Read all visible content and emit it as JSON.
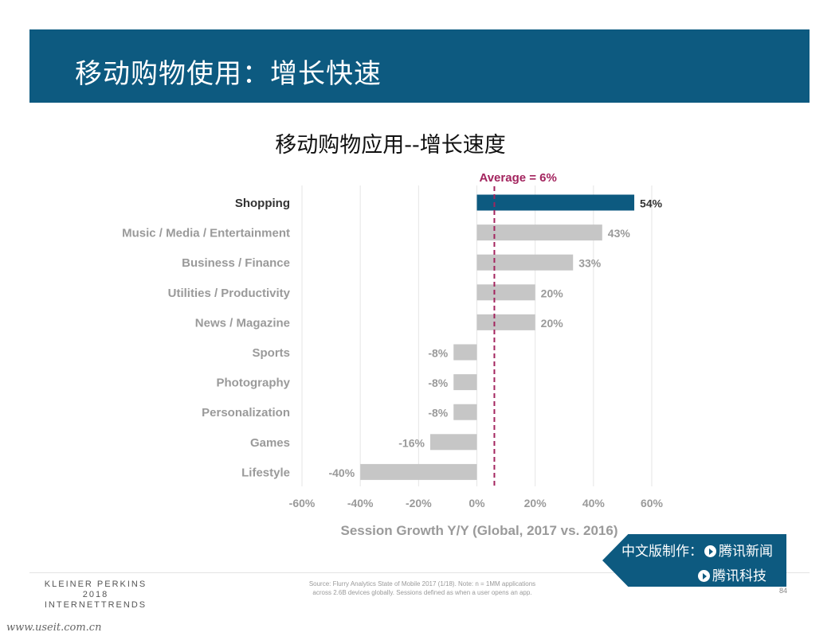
{
  "slide": {
    "heading": "移动购物使用：增长快速",
    "brand_line1": "KLEINER PERKINS",
    "brand_line2": "2018",
    "brand_line3": "INTERNETTRENDS",
    "source_line1": "Source: Flurry Analytics State of Mobile 2017 (1/18).  Note: n = 1MM applications",
    "source_line2": "across 2.6B devices globally. Sessions defined as when a user opens an app.",
    "page_number": "84",
    "badge_line1": "中文版制作：",
    "badge_line1_brand": "腾讯新闻",
    "badge_line2_brand": "腾讯科技",
    "site_mark": "www.useit.com.cn"
  },
  "colors": {
    "header": "#0d5a80",
    "highlight_bar": "#0d5a80",
    "other_bar": "#c6c6c6",
    "average_line": "#a3245e",
    "muted_text": "#9a9a9a",
    "highlight_text": "#333333"
  },
  "chart_data": {
    "type": "bar",
    "orientation": "horizontal",
    "title": "移动购物应用--增长速度",
    "xlabel": "Session Growth Y/Y (Global, 2017 vs. 2016)",
    "ylabel": "",
    "xlim": [
      -60,
      60
    ],
    "x_ticks": [
      -60,
      -40,
      -20,
      0,
      20,
      40,
      60
    ],
    "grid": true,
    "categories": [
      "Shopping",
      "Music / Media / Entertainment",
      "Business / Finance",
      "Utilities / Productivity",
      "News / Magazine",
      "Sports",
      "Photography",
      "Personalization",
      "Games",
      "Lifestyle"
    ],
    "values": [
      54,
      43,
      33,
      20,
      20,
      -8,
      -8,
      -8,
      -16,
      -40
    ],
    "highlight_index": 0,
    "value_suffix": "%",
    "reference_line": {
      "label": "Average = 6%",
      "value": 6
    }
  }
}
